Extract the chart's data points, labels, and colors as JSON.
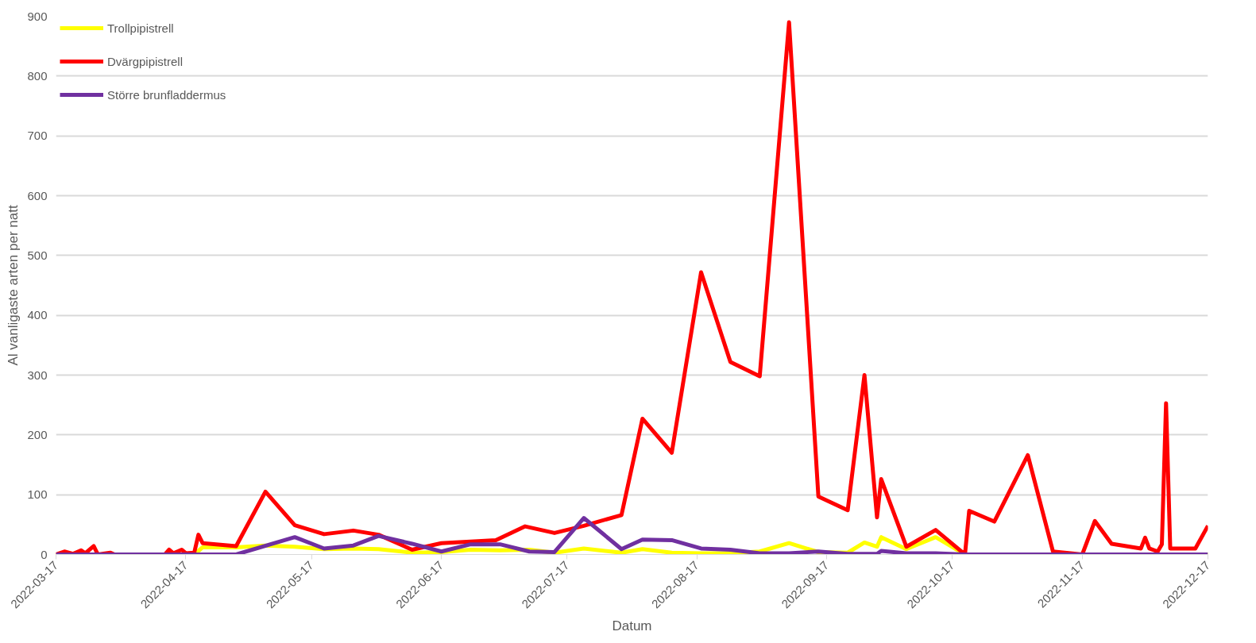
{
  "chart_data": {
    "type": "line",
    "xlabel": "Datum",
    "ylabel": "Al vanligaste arten per natt",
    "xlim": [
      "2022-03-17",
      "2022-12-17"
    ],
    "xticks": [
      "2022-03-17",
      "2022-04-17",
      "2022-05-17",
      "2022-06-17",
      "2022-07-17",
      "2022-08-17",
      "2022-09-17",
      "2022-10-17",
      "2022-11-17",
      "2022-12-17"
    ],
    "ylim": [
      0,
      900
    ],
    "yticks": [
      0,
      100,
      200,
      300,
      400,
      500,
      600,
      700,
      800,
      900
    ],
    "grid": "y",
    "legend": "top left",
    "marker": "none",
    "line_style": "solid",
    "series": [
      {
        "name": "Trollpipistrell",
        "color": "#ffff00",
        "x": [
          "2022-03-17",
          "2022-04-19",
          "2022-04-21",
          "2022-04-29",
          "2022-05-06",
          "2022-05-13",
          "2022-05-20",
          "2022-05-27",
          "2022-06-02",
          "2022-06-10",
          "2022-06-17",
          "2022-06-24",
          "2022-07-01",
          "2022-07-08",
          "2022-07-14",
          "2022-07-21",
          "2022-07-30",
          "2022-08-04",
          "2022-08-11",
          "2022-08-18",
          "2022-08-25",
          "2022-09-01",
          "2022-09-08",
          "2022-09-15",
          "2022-09-22",
          "2022-09-26",
          "2022-09-29",
          "2022-09-30",
          "2022-10-06",
          "2022-10-13",
          "2022-10-20",
          "2022-12-17"
        ],
        "values": [
          0,
          0,
          12,
          12,
          15,
          13,
          9,
          10,
          9,
          3,
          4,
          8,
          7,
          8,
          3,
          10,
          3,
          9,
          3,
          2,
          2,
          5,
          19,
          4,
          3,
          20,
          13,
          29,
          9,
          29,
          0,
          0
        ]
      },
      {
        "name": "Dvärgpipistrell",
        "color": "#ff0000",
        "x": [
          "2022-03-17",
          "2022-03-19",
          "2022-03-21",
          "2022-03-23",
          "2022-03-24",
          "2022-03-26",
          "2022-03-27",
          "2022-03-30",
          "2022-03-31",
          "2022-04-12",
          "2022-04-13",
          "2022-04-14",
          "2022-04-16",
          "2022-04-17",
          "2022-04-19",
          "2022-04-20",
          "2022-04-21",
          "2022-04-29",
          "2022-05-06",
          "2022-05-13",
          "2022-05-20",
          "2022-05-27",
          "2022-06-02",
          "2022-06-10",
          "2022-06-17",
          "2022-06-30",
          "2022-07-07",
          "2022-07-14",
          "2022-07-21",
          "2022-07-30",
          "2022-08-04",
          "2022-08-11",
          "2022-08-18",
          "2022-08-25",
          "2022-09-01",
          "2022-09-08",
          "2022-09-15",
          "2022-09-22",
          "2022-09-26",
          "2022-09-29",
          "2022-09-30",
          "2022-10-06",
          "2022-10-13",
          "2022-10-20",
          "2022-10-21",
          "2022-10-27",
          "2022-11-04",
          "2022-11-10",
          "2022-11-17",
          "2022-11-20",
          "2022-11-24",
          "2022-12-01",
          "2022-12-02",
          "2022-12-03",
          "2022-12-05",
          "2022-12-06",
          "2022-12-07",
          "2022-12-08",
          "2022-12-14",
          "2022-12-17"
        ],
        "values": [
          0,
          5,
          1,
          7,
          2,
          14,
          0,
          3,
          0,
          0,
          8,
          2,
          8,
          2,
          3,
          33,
          19,
          14,
          105,
          49,
          34,
          40,
          33,
          8,
          19,
          24,
          47,
          36,
          48,
          66,
          227,
          170,
          472,
          322,
          298,
          890,
          97,
          74,
          300,
          62,
          126,
          13,
          41,
          0,
          73,
          55,
          166,
          5,
          0,
          56,
          18,
          10,
          28,
          10,
          5,
          17,
          253,
          10,
          10,
          48
        ]
      },
      {
        "name": "Större brunfladdermus",
        "color": "#7030a0",
        "x": [
          "2022-03-17",
          "2022-04-29",
          "2022-05-13",
          "2022-05-20",
          "2022-05-27",
          "2022-06-02",
          "2022-06-10",
          "2022-06-17",
          "2022-06-24",
          "2022-07-01",
          "2022-07-08",
          "2022-07-14",
          "2022-07-21",
          "2022-07-30",
          "2022-08-04",
          "2022-08-11",
          "2022-08-18",
          "2022-08-25",
          "2022-09-01",
          "2022-09-08",
          "2022-09-15",
          "2022-09-22",
          "2022-09-29",
          "2022-09-30",
          "2022-10-06",
          "2022-10-13",
          "2022-10-20",
          "2022-12-17"
        ],
        "values": [
          0,
          0,
          29,
          10,
          15,
          31,
          18,
          5,
          17,
          17,
          5,
          4,
          61,
          9,
          25,
          24,
          10,
          8,
          2,
          2,
          5,
          1,
          1,
          6,
          2,
          2,
          0,
          0
        ]
      }
    ]
  }
}
